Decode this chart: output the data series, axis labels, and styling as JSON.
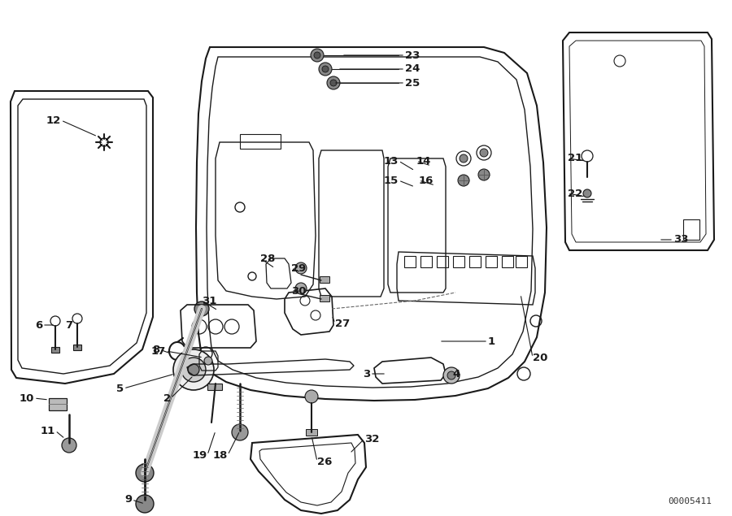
{
  "bg_color": "#ffffff",
  "watermark": "00005411",
  "fig_w": 9.0,
  "fig_h": 6.35,
  "dpi": 100,
  "line_color": "#1a1a1a",
  "label_fontsize": 9.5,
  "label_bold": true
}
